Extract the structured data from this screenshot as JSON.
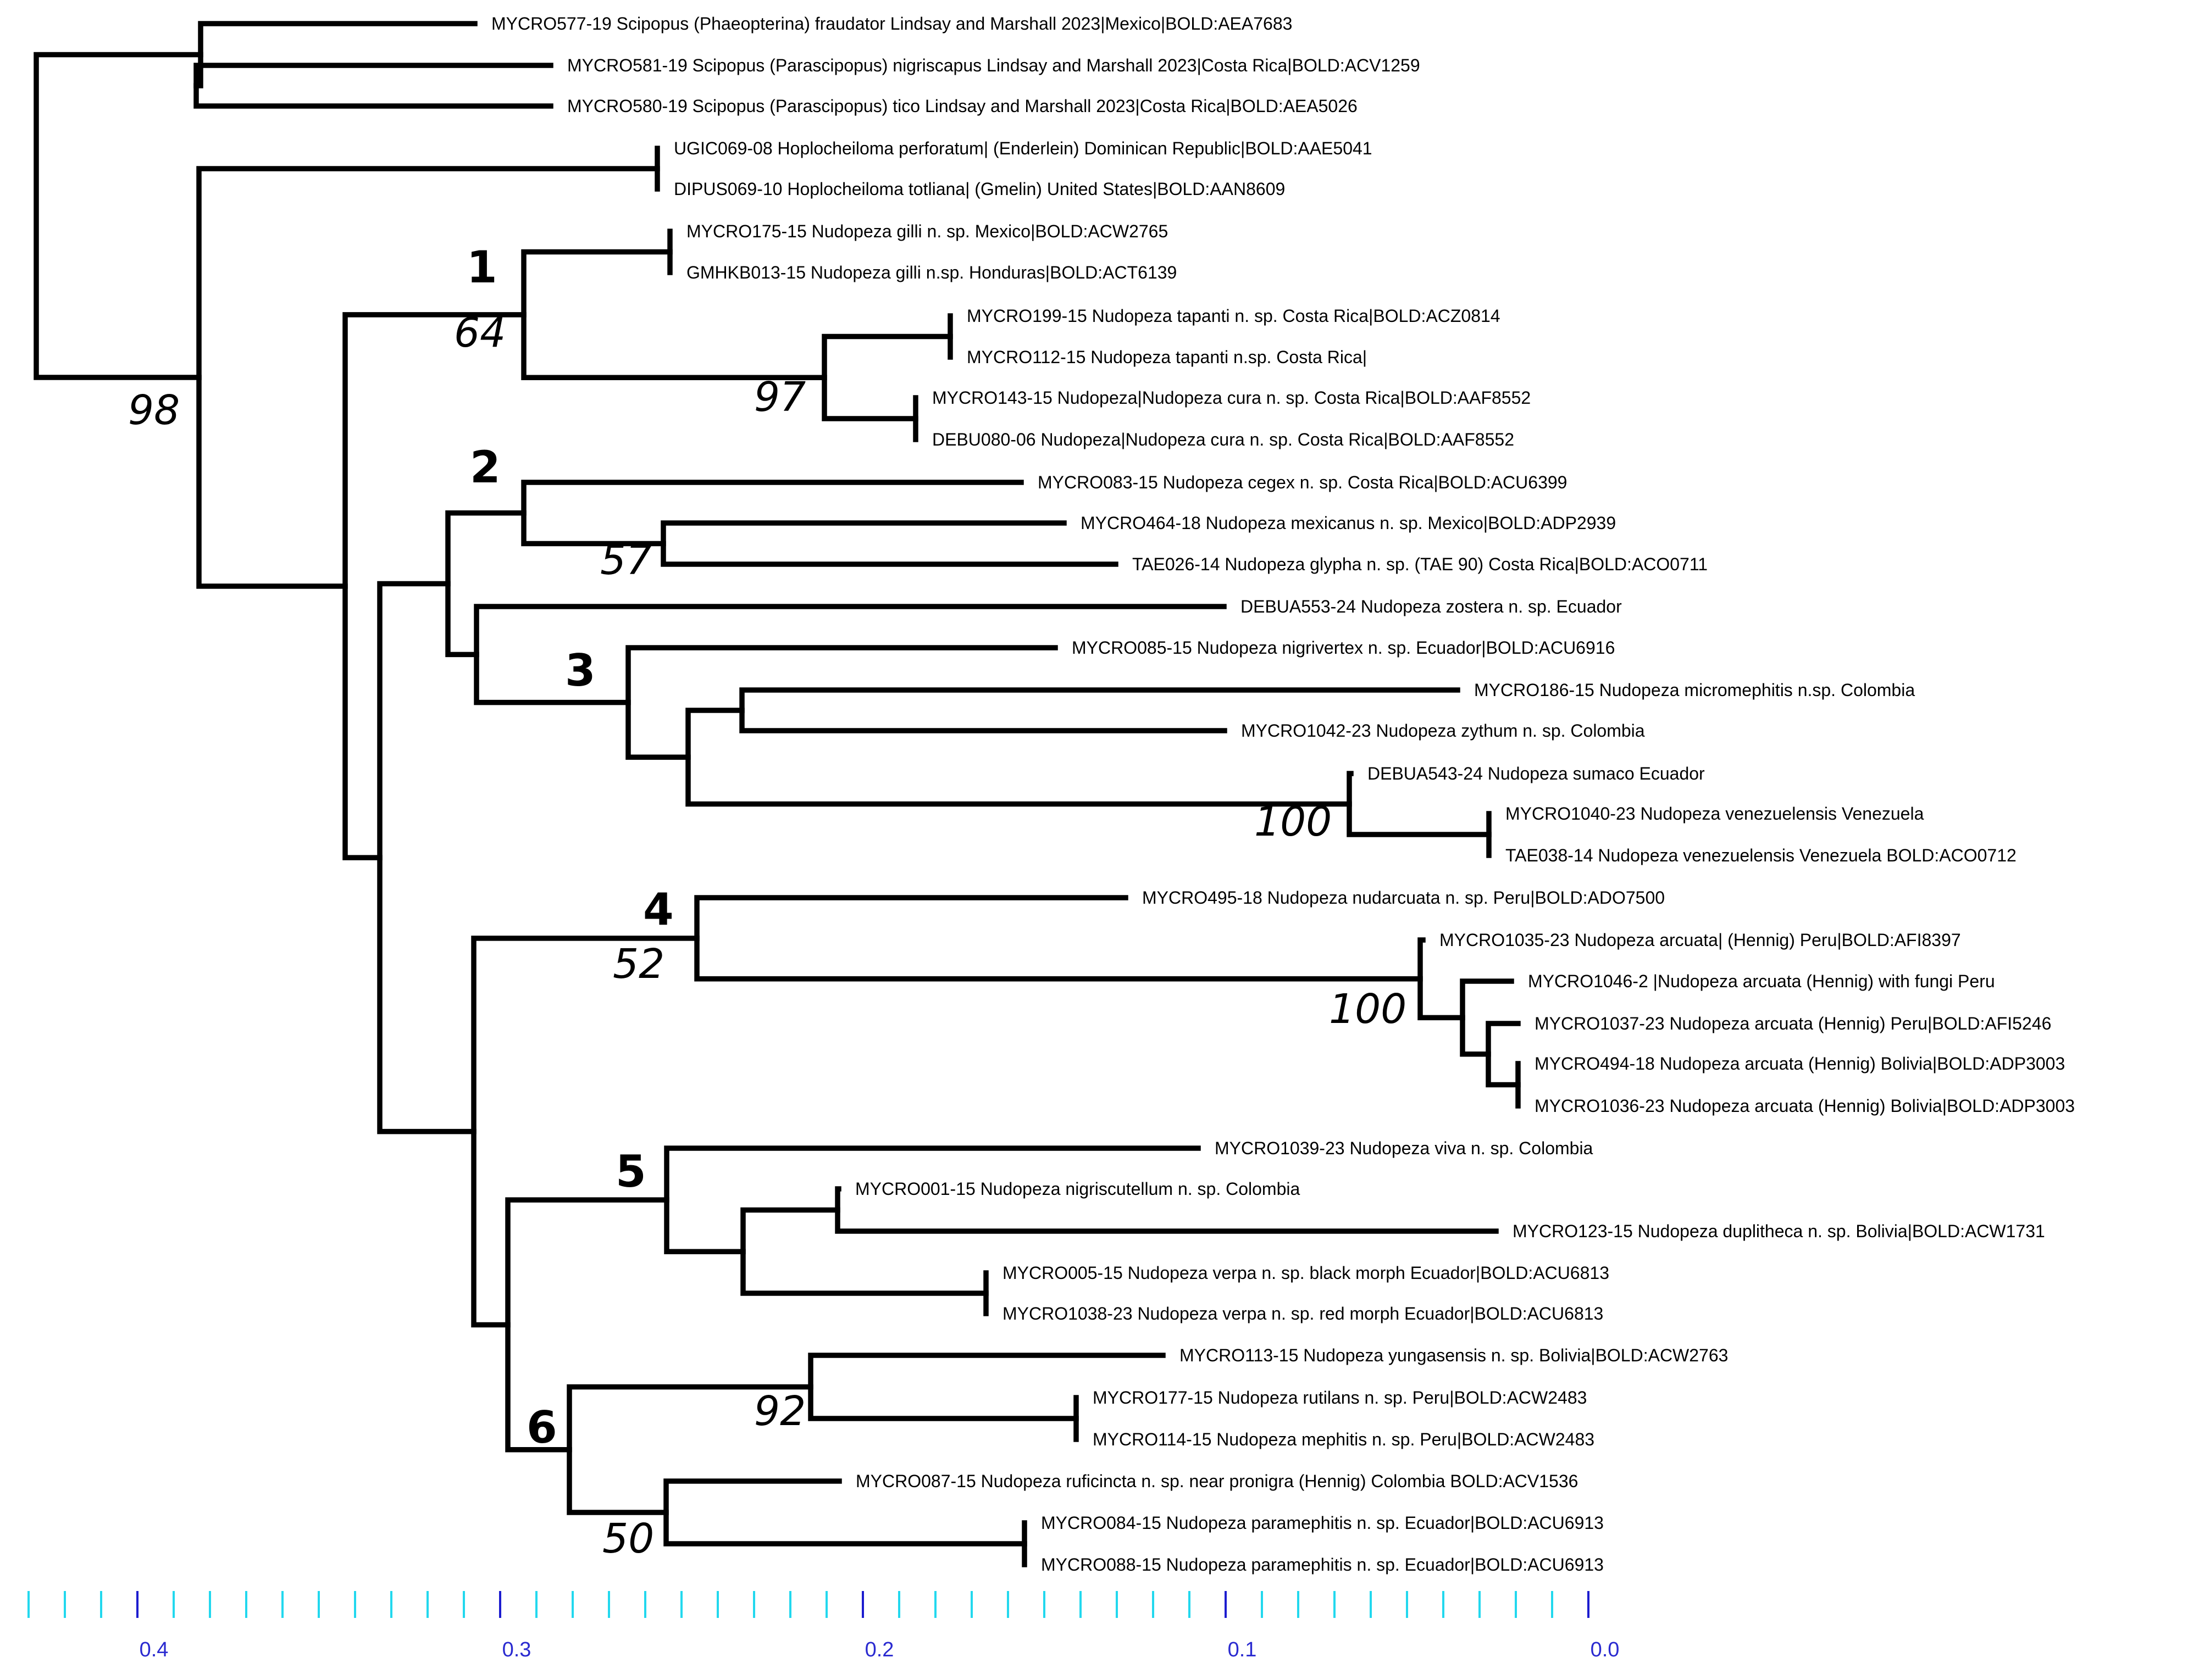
{
  "tree": {
    "leaves": [
      "MYCRO577-19 Scipopus (Phaeopterina) fraudator Lindsay and Marshall 2023|Mexico|BOLD:AEA7683",
      "MYCRO581-19 Scipopus (Parascipopus) nigriscapus Lindsay and Marshall 2023|Costa Rica|BOLD:ACV1259",
      "MYCRO580-19 Scipopus (Parascipopus) tico Lindsay and Marshall  2023|Costa Rica|BOLD:AEA5026",
      "UGIC069-08 Hoplocheiloma perforatum| (Enderlein) Dominican Republic|BOLD:AAE5041",
      "DIPUS069-10 Hoplocheiloma totliana| (Gmelin) United States|BOLD:AAN8609",
      "MYCRO175-15 Nudopeza gilli  n. sp. Mexico|BOLD:ACW2765",
      "GMHKB013-15 Nudopeza gilli n.sp. Honduras|BOLD:ACT6139",
      "MYCRO199-15 Nudopeza tapanti  n. sp. Costa Rica|BOLD:ACZ0814",
      "MYCRO112-15 Nudopeza tapanti n.sp.  Costa Rica|",
      "MYCRO143-15 Nudopeza|Nudopeza cura  n. sp. Costa Rica|BOLD:AAF8552",
      "DEBU080-06 Nudopeza|Nudopeza cura  n. sp. Costa Rica|BOLD:AAF8552",
      "MYCRO083-15 Nudopeza cegex  n. sp.  Costa Rica|BOLD:ACU6399",
      "MYCRO464-18 Nudopeza mexicanus  n. sp. Mexico|BOLD:ADP2939",
      "TAE026-14 Nudopeza glypha  n. sp. (TAE 90) Costa Rica|BOLD:ACO0711",
      "DEBUA553-24 Nudopeza zostera n. sp. Ecuador",
      "MYCRO085-15 Nudopeza nigrivertex  n. sp. Ecuador|BOLD:ACU6916",
      "MYCRO186-15 Nudopeza micromephitis n.sp. Colombia",
      "MYCRO1042-23 Nudopeza zythum n. sp. Colombia",
      "DEBUA543-24 Nudopeza sumaco Ecuador",
      "MYCRO1040-23 Nudopeza venezuelensis Venezuela",
      "TAE038-14 Nudopeza venezuelensis Venezuela BOLD:ACO0712",
      "MYCRO495-18 Nudopeza nudarcuata  n. sp. Peru|BOLD:ADO7500",
      "MYCRO1035-23 Nudopeza arcuata| (Hennig) Peru|BOLD:AFI8397",
      "MYCRO1046-2 |Nudopeza arcuata (Hennig) with fungi Peru",
      "MYCRO1037-23 Nudopeza arcuata (Hennig) Peru|BOLD:AFI5246",
      "MYCRO494-18 Nudopeza arcuata (Hennig) Bolivia|BOLD:ADP3003",
      "MYCRO1036-23 Nudopeza arcuata (Hennig) Bolivia|BOLD:ADP3003",
      "MYCRO1039-23 Nudopeza viva n. sp. Colombia",
      "MYCRO001-15 Nudopeza nigriscutellum n. sp. Colombia",
      "MYCRO123-15 Nudopeza duplitheca  n. sp. Bolivia|BOLD:ACW1731",
      "MYCRO005-15 Nudopeza verpa n. sp. black morph Ecuador|BOLD:ACU6813",
      "MYCRO1038-23 Nudopeza verpa n. sp. red morph Ecuador|BOLD:ACU6813",
      "MYCRO113-15 Nudopeza yungasensis  n. sp. Bolivia|BOLD:ACW2763",
      "MYCRO177-15 Nudopeza rutilans n. sp. Peru|BOLD:ACW2483",
      "MYCRO114-15 Nudopeza mephitis  n. sp. Peru|BOLD:ACW2483",
      "MYCRO087-15 Nudopeza ruficincta n. sp. near pronigra (Hennig) Colombia BOLD:ACV1536",
      "MYCRO084-15 Nudopeza paramephitis  n. sp. Ecuador|BOLD:ACU6913",
      "MYCRO088-15 Nudopeza paramephitis  n. sp. Ecuador|BOLD:ACU6913"
    ],
    "clade_numbers": [
      "1",
      "2",
      "3",
      "4",
      "5",
      "6"
    ],
    "bootstrap_values": [
      "98",
      "64",
      "97",
      "57",
      "100",
      "52",
      "100",
      "92",
      "50"
    ],
    "scale": {
      "labels": [
        "0.4",
        "0.3",
        "0.2",
        "0.1",
        "0.0"
      ],
      "major_tick_color": "#1c1ccf",
      "minor_tick_color": "#22d8ee",
      "label_color": "#2a2ad0"
    }
  }
}
